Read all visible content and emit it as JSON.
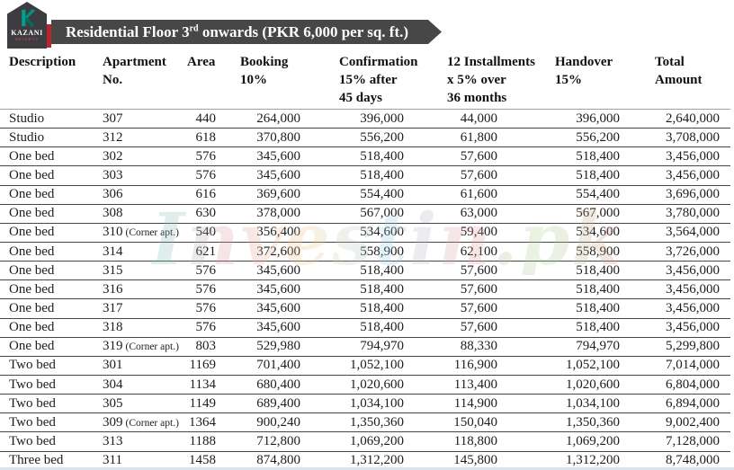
{
  "logo": {
    "brand": "KAZANI",
    "sub": "HEIGHTS"
  },
  "banner": {
    "title_prefix": "Residential Floor 3",
    "title_sup": "rd",
    "title_suffix": " onwards (PKR 6,000 per sq. ft.)"
  },
  "colors": {
    "banner_bg": "#474747",
    "logo_dark": "#3d3d41",
    "logo_teal": "#00a18c",
    "accent_red": "#b5252b"
  },
  "watermark": "Investin.pk",
  "table": {
    "columns": [
      {
        "label_lines": [
          "Description"
        ]
      },
      {
        "label_lines": [
          "Apartment",
          "No."
        ]
      },
      {
        "label_lines": [
          "Area"
        ]
      },
      {
        "label_lines": [
          "Booking",
          "10%"
        ]
      },
      {
        "label_lines": [
          "Confirmation",
          "15% after",
          "45 days"
        ]
      },
      {
        "label_lines": [
          "12 Installments",
          "x 5% over",
          "36 months"
        ]
      },
      {
        "label_lines": [
          "Handover",
          "15%"
        ]
      },
      {
        "label_lines": [
          "Total",
          "Amount"
        ]
      }
    ],
    "rows": [
      {
        "description": "Studio",
        "apt_no": "307",
        "apt_note": "",
        "area": "440",
        "booking": "264,000",
        "confirmation": "396,000",
        "installment": "44,000",
        "handover": "396,000",
        "total": "2,640,000"
      },
      {
        "description": "Studio",
        "apt_no": "312",
        "apt_note": "",
        "area": "618",
        "booking": "370,800",
        "confirmation": "556,200",
        "installment": "61,800",
        "handover": "556,200",
        "total": "3,708,000"
      },
      {
        "description": "One bed",
        "apt_no": "302",
        "apt_note": "",
        "area": "576",
        "booking": "345,600",
        "confirmation": "518,400",
        "installment": "57,600",
        "handover": "518,400",
        "total": "3,456,000"
      },
      {
        "description": "One bed",
        "apt_no": "303",
        "apt_note": "",
        "area": "576",
        "booking": "345,600",
        "confirmation": "518,400",
        "installment": "57,600",
        "handover": "518,400",
        "total": "3,456,000"
      },
      {
        "description": "One bed",
        "apt_no": "306",
        "apt_note": "",
        "area": "616",
        "booking": "369,600",
        "confirmation": "554,400",
        "installment": "61,600",
        "handover": "554,400",
        "total": "3,696,000"
      },
      {
        "description": "One bed",
        "apt_no": "308",
        "apt_note": "",
        "area": "630",
        "booking": "378,000",
        "confirmation": "567,000",
        "installment": "63,000",
        "handover": "567,000",
        "total": "3,780,000"
      },
      {
        "description": "One bed",
        "apt_no": "310",
        "apt_note": "(Corner apt.)",
        "area": "540",
        "booking": "356,400",
        "confirmation": "534,600",
        "installment": "59,400",
        "handover": "534,600",
        "total": "3,564,000"
      },
      {
        "description": "One bed",
        "apt_no": "314",
        "apt_note": "",
        "area": "621",
        "booking": "372,600",
        "confirmation": "558,900",
        "installment": "62,100",
        "handover": "558,900",
        "total": "3,726,000"
      },
      {
        "description": "One bed",
        "apt_no": "315",
        "apt_note": "",
        "area": "576",
        "booking": "345,600",
        "confirmation": "518,400",
        "installment": "57,600",
        "handover": "518,400",
        "total": "3,456,000"
      },
      {
        "description": "One bed",
        "apt_no": "316",
        "apt_note": "",
        "area": "576",
        "booking": "345,600",
        "confirmation": "518,400",
        "installment": "57,600",
        "handover": "518,400",
        "total": "3,456,000"
      },
      {
        "description": "One bed",
        "apt_no": "317",
        "apt_note": "",
        "area": "576",
        "booking": "345,600",
        "confirmation": "518,400",
        "installment": "57,600",
        "handover": "518,400",
        "total": "3,456,000"
      },
      {
        "description": "One bed",
        "apt_no": "318",
        "apt_note": "",
        "area": "576",
        "booking": "345,600",
        "confirmation": "518,400",
        "installment": "57,600",
        "handover": "518,400",
        "total": "3,456,000"
      },
      {
        "description": "One bed",
        "apt_no": "319",
        "apt_note": "(Corner apt.)",
        "area": "803",
        "booking": "529,980",
        "confirmation": "794,970",
        "installment": "88,330",
        "handover": "794,970",
        "total": "5,299,800"
      },
      {
        "description": "Two bed",
        "apt_no": "301",
        "apt_note": "",
        "area": "1169",
        "booking": "701,400",
        "confirmation": "1,052,100",
        "installment": "116,900",
        "handover": "1,052,100",
        "total": "7,014,000"
      },
      {
        "description": "Two bed",
        "apt_no": "304",
        "apt_note": "",
        "area": "1134",
        "booking": "680,400",
        "confirmation": "1,020,600",
        "installment": "113,400",
        "handover": "1,020,600",
        "total": "6,804,000"
      },
      {
        "description": "Two bed",
        "apt_no": "305",
        "apt_note": "",
        "area": "1149",
        "booking": "689,400",
        "confirmation": "1,034,100",
        "installment": "114,900",
        "handover": "1,034,100",
        "total": "6,894,000"
      },
      {
        "description": "Two bed",
        "apt_no": "309",
        "apt_note": "(Corner apt.)",
        "area": "1364",
        "booking": "900,240",
        "confirmation": "1,350,360",
        "installment": "150,040",
        "handover": "1,350,360",
        "total": "9,002,400"
      },
      {
        "description": "Two bed",
        "apt_no": "313",
        "apt_note": "",
        "area": "1188",
        "booking": "712,800",
        "confirmation": "1,069,200",
        "installment": "118,800",
        "handover": "1,069,200",
        "total": "7,128,000"
      },
      {
        "description": "Three bed",
        "apt_no": "311",
        "apt_note": "",
        "area": "1458",
        "booking": "874,800",
        "confirmation": "1,312,200",
        "installment": "145,800",
        "handover": "1,312,200",
        "total": "8,748,000"
      }
    ]
  }
}
